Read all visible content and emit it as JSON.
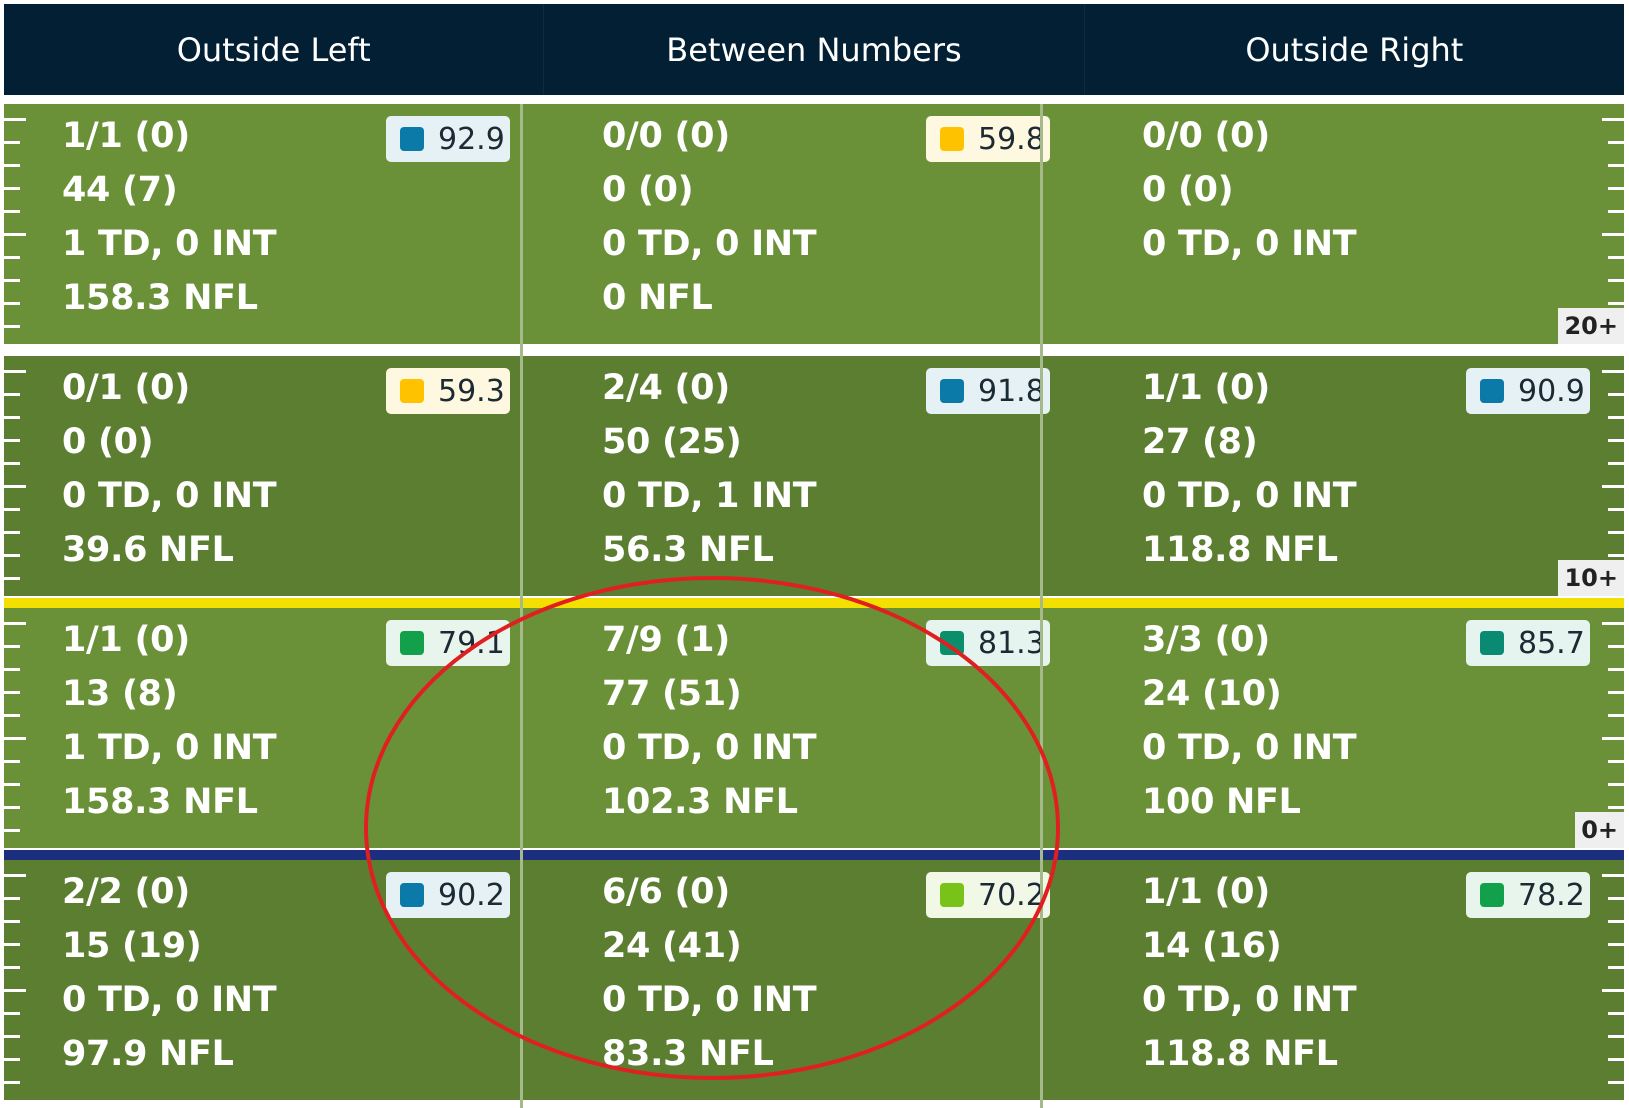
{
  "columns": [
    "Outside Left",
    "Between Numbers",
    "Outside Right"
  ],
  "zones": [
    {
      "yard_label": "20+",
      "cells": [
        {
          "lines": [
            "1/1 (0)",
            "44 (7)",
            "1 TD, 0 INT",
            "158.3 NFL"
          ],
          "grade": "92.9",
          "grade_color": "#0b7aa8",
          "badge_bg": "#e6f1f6"
        },
        {
          "lines": [
            "0/0 (0)",
            "0 (0)",
            "0 TD, 0 INT",
            "0 NFL"
          ],
          "grade": "59.8",
          "grade_color": "#ffc200",
          "badge_bg": "#fff8e1"
        },
        {
          "lines": [
            "0/0 (0)",
            "0 (0)",
            "0 TD, 0 INT",
            ""
          ],
          "grade": null,
          "grade_color": null,
          "badge_bg": null
        }
      ]
    },
    {
      "yard_label": "10+",
      "cells": [
        {
          "lines": [
            "0/1 (0)",
            "0 (0)",
            "0 TD, 0 INT",
            "39.6 NFL"
          ],
          "grade": "59.3",
          "grade_color": "#ffc200",
          "badge_bg": "#fff8e1"
        },
        {
          "lines": [
            "2/4 (0)",
            "50 (25)",
            "0 TD, 1 INT",
            "56.3 NFL"
          ],
          "grade": "91.8",
          "grade_color": "#0b7aa8",
          "badge_bg": "#e6f1f6"
        },
        {
          "lines": [
            "1/1 (0)",
            "27 (8)",
            "0 TD, 0 INT",
            "118.8 NFL"
          ],
          "grade": "90.9",
          "grade_color": "#0b7aa8",
          "badge_bg": "#e6f1f6"
        }
      ]
    },
    {
      "yard_label": "0+",
      "cells": [
        {
          "lines": [
            "1/1 (0)",
            "13 (8)",
            "1 TD, 0 INT",
            "158.3 NFL"
          ],
          "grade": "79.1",
          "grade_color": "#12a14a",
          "badge_bg": "#e8f5ec"
        },
        {
          "lines": [
            "7/9 (1)",
            "77 (51)",
            "0 TD, 0 INT",
            "102.3 NFL"
          ],
          "grade": "81.3",
          "grade_color": "#0a8f6a",
          "badge_bg": "#e6f4ef"
        },
        {
          "lines": [
            "3/3 (0)",
            "24 (10)",
            "0 TD, 0 INT",
            "100 NFL"
          ],
          "grade": "85.7",
          "grade_color": "#0a8a73",
          "badge_bg": "#e6f4ef"
        }
      ]
    },
    {
      "yard_label": "",
      "cells": [
        {
          "lines": [
            "2/2 (0)",
            "15 (19)",
            "0 TD, 0 INT",
            "97.9 NFL"
          ],
          "grade": "90.2",
          "grade_color": "#0b7aa8",
          "badge_bg": "#e6f1f6"
        },
        {
          "lines": [
            "6/6 (0)",
            "24 (41)",
            "0 TD, 0 INT",
            "83.3 NFL"
          ],
          "grade": "70.2",
          "grade_color": "#79c21a",
          "badge_bg": "#f1f8e6"
        },
        {
          "lines": [
            "1/1 (0)",
            "14 (16)",
            "0 TD, 0 INT",
            "118.8 NFL"
          ],
          "grade": "78.2",
          "grade_color": "#12a14a",
          "badge_bg": "#e8f5ec"
        }
      ]
    }
  ],
  "colors": {
    "header_bg": "#021f33",
    "field_light": "#6a9138",
    "field_dark": "#5c7e31",
    "yellow_line": "#f3e000",
    "blue_line": "#1c2f7f",
    "annotation_circle": "#e02020"
  },
  "annotation": {
    "shape": "ellipse",
    "color": "#e02020"
  }
}
